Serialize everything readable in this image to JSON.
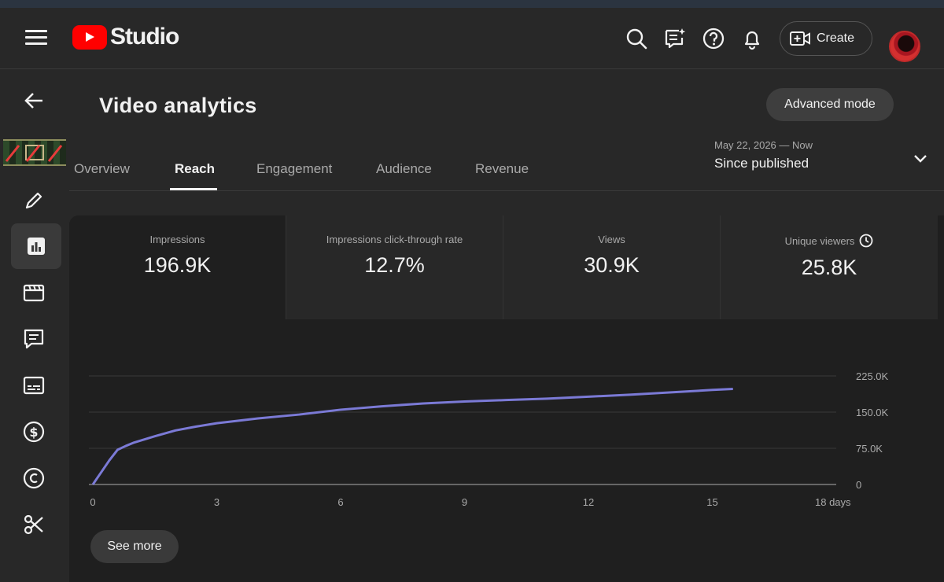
{
  "header": {
    "logo_text": "Studio",
    "create_label": "Create"
  },
  "page": {
    "title": "Video analytics",
    "advanced_mode_label": "Advanced mode"
  },
  "tabs": [
    {
      "label": "Overview"
    },
    {
      "label": "Reach"
    },
    {
      "label": "Engagement"
    },
    {
      "label": "Audience"
    },
    {
      "label": "Revenue"
    }
  ],
  "date_range": {
    "range": "May 22, 2026 — Now",
    "label": "Since published"
  },
  "metrics": [
    {
      "label": "Impressions",
      "value": "196.9K"
    },
    {
      "label": "Impressions click-through rate",
      "value": "12.7%"
    },
    {
      "label": "Views",
      "value": "30.9K"
    },
    {
      "label": "Unique viewers",
      "value": "25.8K"
    }
  ],
  "see_more_label": "See more",
  "colors": {
    "accent": "#ff0000",
    "line": "#7b7ad6",
    "background": "#282828"
  },
  "chart_data": {
    "type": "line",
    "x_tick_labels": [
      "0",
      "3",
      "6",
      "9",
      "12",
      "15",
      "18 days"
    ],
    "y_tick_labels": [
      "225.0K",
      "150.0K",
      "75.0K",
      "0"
    ],
    "xlim": [
      0,
      18
    ],
    "ylim": [
      0,
      225000
    ],
    "grid": true,
    "series": [
      {
        "x": [
          0,
          0.2,
          0.4,
          0.6,
          0.8,
          1,
          1.5,
          2,
          2.5,
          3,
          4,
          5,
          6,
          7,
          8,
          9,
          10,
          11,
          12,
          13,
          14,
          15,
          15.5
        ],
        "values": [
          0,
          25000,
          50000,
          72000,
          80000,
          87000,
          100000,
          112000,
          120000,
          127000,
          137000,
          145000,
          155000,
          162000,
          168000,
          172000,
          175000,
          178000,
          182000,
          186000,
          191000,
          196000,
          198000
        ]
      }
    ]
  }
}
